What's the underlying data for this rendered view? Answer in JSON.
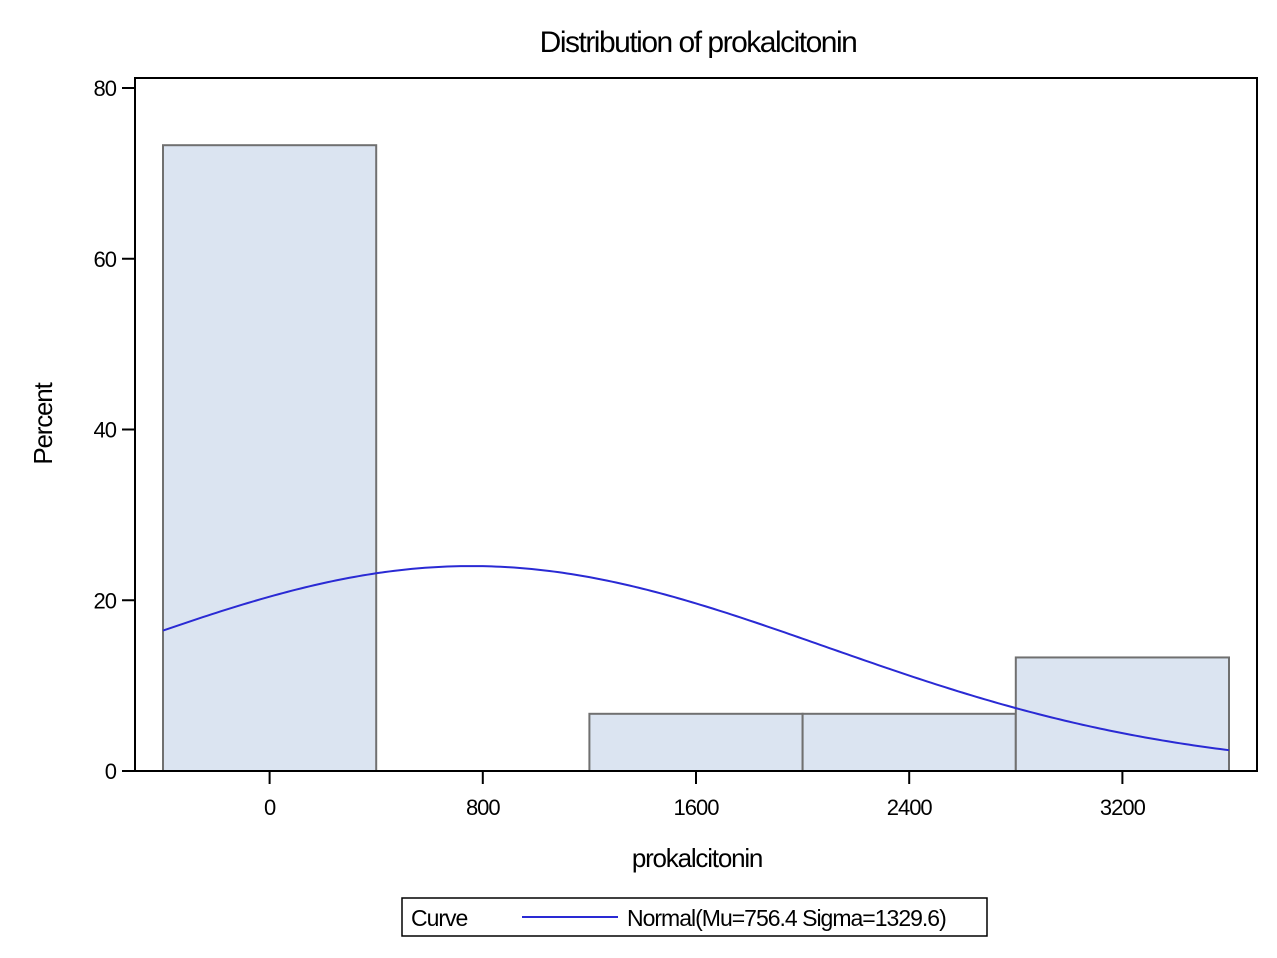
{
  "chart_data": {
    "type": "bar",
    "title": "Distribution of prokalcitonin",
    "xlabel": "prokalcitonin",
    "ylabel": "Percent",
    "xlim": [
      -400,
      3600
    ],
    "ylim": [
      0,
      80
    ],
    "x_ticks": [
      0,
      800,
      1600,
      2400,
      3200
    ],
    "y_ticks": [
      0,
      20,
      40,
      60,
      80
    ],
    "bins": [
      {
        "x0": -400,
        "x1": 400,
        "value": 73.3
      },
      {
        "x0": 1200,
        "x1": 2000,
        "value": 6.7
      },
      {
        "x0": 2000,
        "x1": 2800,
        "value": 6.7
      },
      {
        "x0": 2800,
        "x1": 3600,
        "value": 13.3
      }
    ],
    "bar_fill": "#dbe4f1",
    "bar_stroke": "#707070",
    "curve": {
      "type": "normal",
      "mu": 756.4,
      "sigma": 1329.6,
      "color": "#2a2ad4",
      "bin_width": 800
    },
    "legend": {
      "title": "Curve",
      "entries": [
        "Normal(Mu=756.4 Sigma=1329.6)"
      ],
      "placement": "bottom"
    },
    "grid": false
  }
}
